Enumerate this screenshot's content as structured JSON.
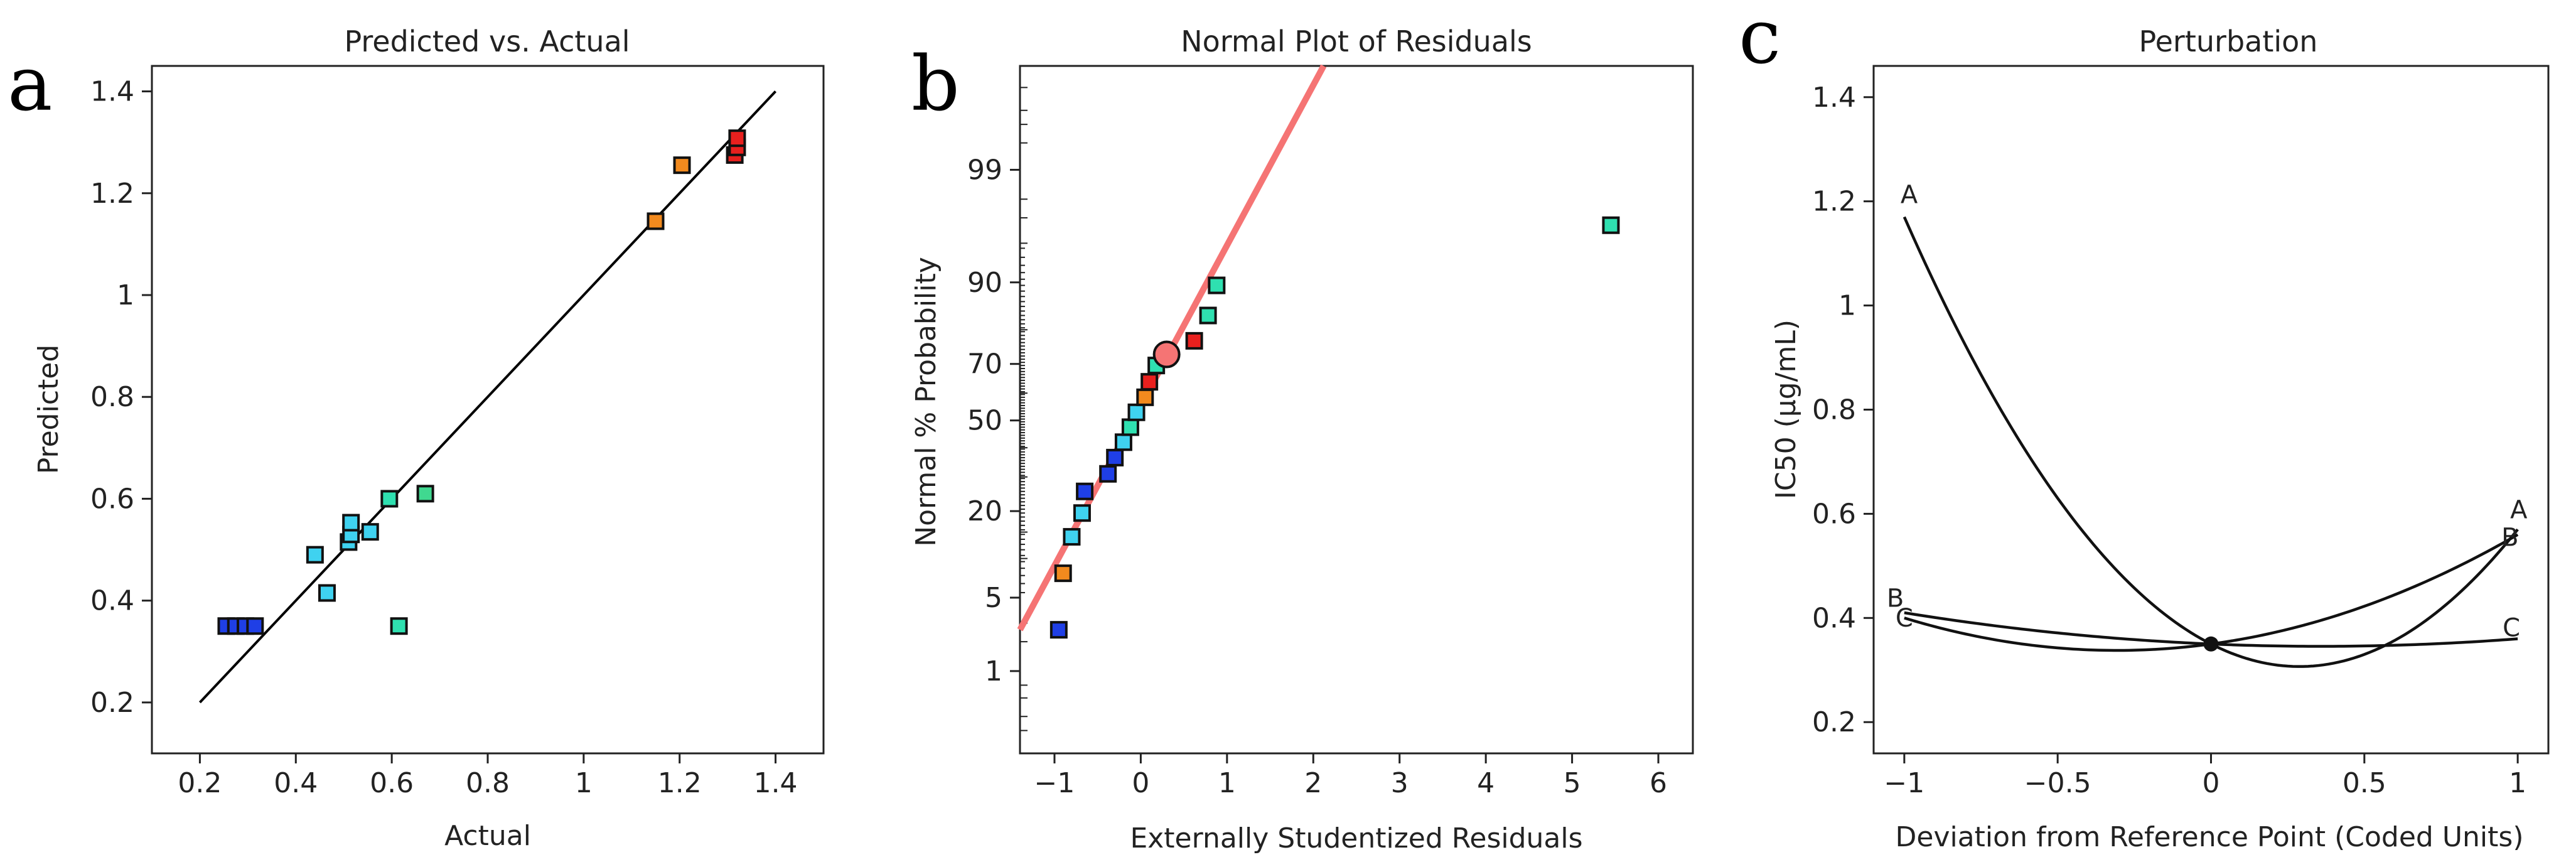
{
  "colors": {
    "blue": "#1f3fe6",
    "cyan": "#3fd2f0",
    "teal": "#2fe0b0",
    "orange": "#f28a1e",
    "red": "#e8201e",
    "green": "#40d890",
    "fit": "#f57474",
    "line": "#000000"
  },
  "chart_data": [
    {
      "id": "a",
      "panel_letter": "a",
      "type": "scatter",
      "title": "Predicted vs. Actual",
      "xlabel": "Actual",
      "ylabel": "Predicted",
      "xlim": [
        0.1,
        1.5
      ],
      "ylim": [
        0.1,
        1.45
      ],
      "xticks": [
        0.2,
        0.4,
        0.6,
        0.8,
        1,
        1.2,
        1.4
      ],
      "xtick_labels": [
        "0.2",
        "0.4",
        "0.6",
        "0.8",
        "1",
        "1.2",
        "1.4"
      ],
      "yticks": [
        0.2,
        0.4,
        0.6,
        0.8,
        1,
        1.2,
        1.4
      ],
      "ytick_labels": [
        "0.2",
        "0.4",
        "0.6",
        "0.8",
        "1",
        "1.2",
        "1.4"
      ],
      "reference_line": {
        "x": [
          0.2,
          1.4
        ],
        "y": [
          0.2,
          1.4
        ]
      },
      "points": [
        {
          "x": 0.255,
          "y": 0.35,
          "color": "blue"
        },
        {
          "x": 0.275,
          "y": 0.35,
          "color": "blue"
        },
        {
          "x": 0.295,
          "y": 0.35,
          "color": "blue"
        },
        {
          "x": 0.315,
          "y": 0.35,
          "color": "blue"
        },
        {
          "x": 0.44,
          "y": 0.49,
          "color": "cyan"
        },
        {
          "x": 0.465,
          "y": 0.415,
          "color": "cyan"
        },
        {
          "x": 0.51,
          "y": 0.515,
          "color": "cyan"
        },
        {
          "x": 0.515,
          "y": 0.53,
          "color": "cyan"
        },
        {
          "x": 0.515,
          "y": 0.553,
          "color": "cyan"
        },
        {
          "x": 0.555,
          "y": 0.535,
          "color": "cyan"
        },
        {
          "x": 0.595,
          "y": 0.6,
          "color": "teal"
        },
        {
          "x": 0.615,
          "y": 0.35,
          "color": "teal"
        },
        {
          "x": 0.67,
          "y": 0.61,
          "color": "green"
        },
        {
          "x": 1.15,
          "y": 1.145,
          "color": "orange"
        },
        {
          "x": 1.205,
          "y": 1.255,
          "color": "orange"
        },
        {
          "x": 1.315,
          "y": 1.275,
          "color": "red"
        },
        {
          "x": 1.32,
          "y": 1.29,
          "color": "red"
        },
        {
          "x": 1.32,
          "y": 1.308,
          "color": "red"
        }
      ]
    },
    {
      "id": "b",
      "panel_letter": "b",
      "type": "scatter",
      "title": "Normal Plot of Residuals",
      "xlabel": "Externally Studentized Residuals",
      "ylabel": "Normal % Probability",
      "xlim": [
        -1.4,
        6.4
      ],
      "yscale": "probit",
      "ylim_percent": [
        0.1,
        99.95
      ],
      "xticks": [
        -1,
        0,
        1,
        2,
        3,
        4,
        5,
        6
      ],
      "xtick_labels": [
        "-1",
        "0",
        "1",
        "2",
        "3",
        "4",
        "5",
        "6"
      ],
      "yticks": [
        1,
        5,
        20,
        50,
        70,
        90,
        99
      ],
      "ytick_labels": [
        "1",
        "5",
        "20",
        "50",
        "70",
        "90",
        "99"
      ],
      "fit_line": {
        "x": [
          -1.4,
          2.12
        ],
        "y": [
          2.6,
          99.95
        ]
      },
      "highlight_point": {
        "x": 0.3,
        "y": 73,
        "color": "fit"
      },
      "points": [
        {
          "x": -0.95,
          "y": 2.6,
          "color": "blue"
        },
        {
          "x": -0.9,
          "y": 7.8,
          "color": "orange"
        },
        {
          "x": -0.8,
          "y": 14,
          "color": "cyan"
        },
        {
          "x": -0.68,
          "y": 19.5,
          "color": "cyan"
        },
        {
          "x": -0.65,
          "y": 25.5,
          "color": "blue"
        },
        {
          "x": -0.38,
          "y": 31,
          "color": "blue"
        },
        {
          "x": -0.3,
          "y": 36.5,
          "color": "blue"
        },
        {
          "x": -0.2,
          "y": 42,
          "color": "cyan"
        },
        {
          "x": -0.12,
          "y": 47.5,
          "color": "teal"
        },
        {
          "x": -0.05,
          "y": 53,
          "color": "cyan"
        },
        {
          "x": 0.05,
          "y": 58.5,
          "color": "orange"
        },
        {
          "x": 0.1,
          "y": 64,
          "color": "red"
        },
        {
          "x": 0.18,
          "y": 69.5,
          "color": "teal"
        },
        {
          "x": 0.62,
          "y": 77,
          "color": "red"
        },
        {
          "x": 0.78,
          "y": 83.5,
          "color": "teal"
        },
        {
          "x": 0.88,
          "y": 89.5,
          "color": "teal"
        },
        {
          "x": 5.45,
          "y": 96.5,
          "color": "teal"
        }
      ]
    },
    {
      "id": "c",
      "panel_letter": "c",
      "type": "line",
      "title": "Perturbation",
      "xlabel": "Deviation from Reference Point (Coded Units)",
      "ylabel": "IC50 (μg/mL)",
      "xlim": [
        -1.1,
        1.1
      ],
      "ylim": [
        0.14,
        1.46
      ],
      "xticks": [
        -1,
        -0.5,
        0,
        0.5,
        1
      ],
      "xtick_labels": [
        "-1",
        "-0.5",
        "0",
        "0.5",
        "1"
      ],
      "yticks": [
        0.2,
        0.4,
        0.6,
        0.8,
        1,
        1.2,
        1.4
      ],
      "ytick_labels": [
        "0.2",
        "0.4",
        "0.6",
        "0.8",
        "1",
        "1.2",
        "1.4"
      ],
      "reference_point": {
        "x": 0,
        "y": 0.35
      },
      "series": [
        {
          "name": "A",
          "quad": [
            0.35,
            -0.3,
            0.52
          ],
          "x": [
            -1,
            1
          ],
          "label_start": "A",
          "label_end": "A"
        },
        {
          "name": "B",
          "quad": [
            0.35,
            0.08,
            0.13
          ],
          "x": [
            -1,
            1
          ],
          "label_start": "B",
          "label_end": "B"
        },
        {
          "name": "C",
          "quad": [
            0.35,
            -0.025,
            0.035
          ],
          "x": [
            -1,
            1
          ],
          "label_start": "C",
          "label_end": "C"
        }
      ]
    }
  ]
}
